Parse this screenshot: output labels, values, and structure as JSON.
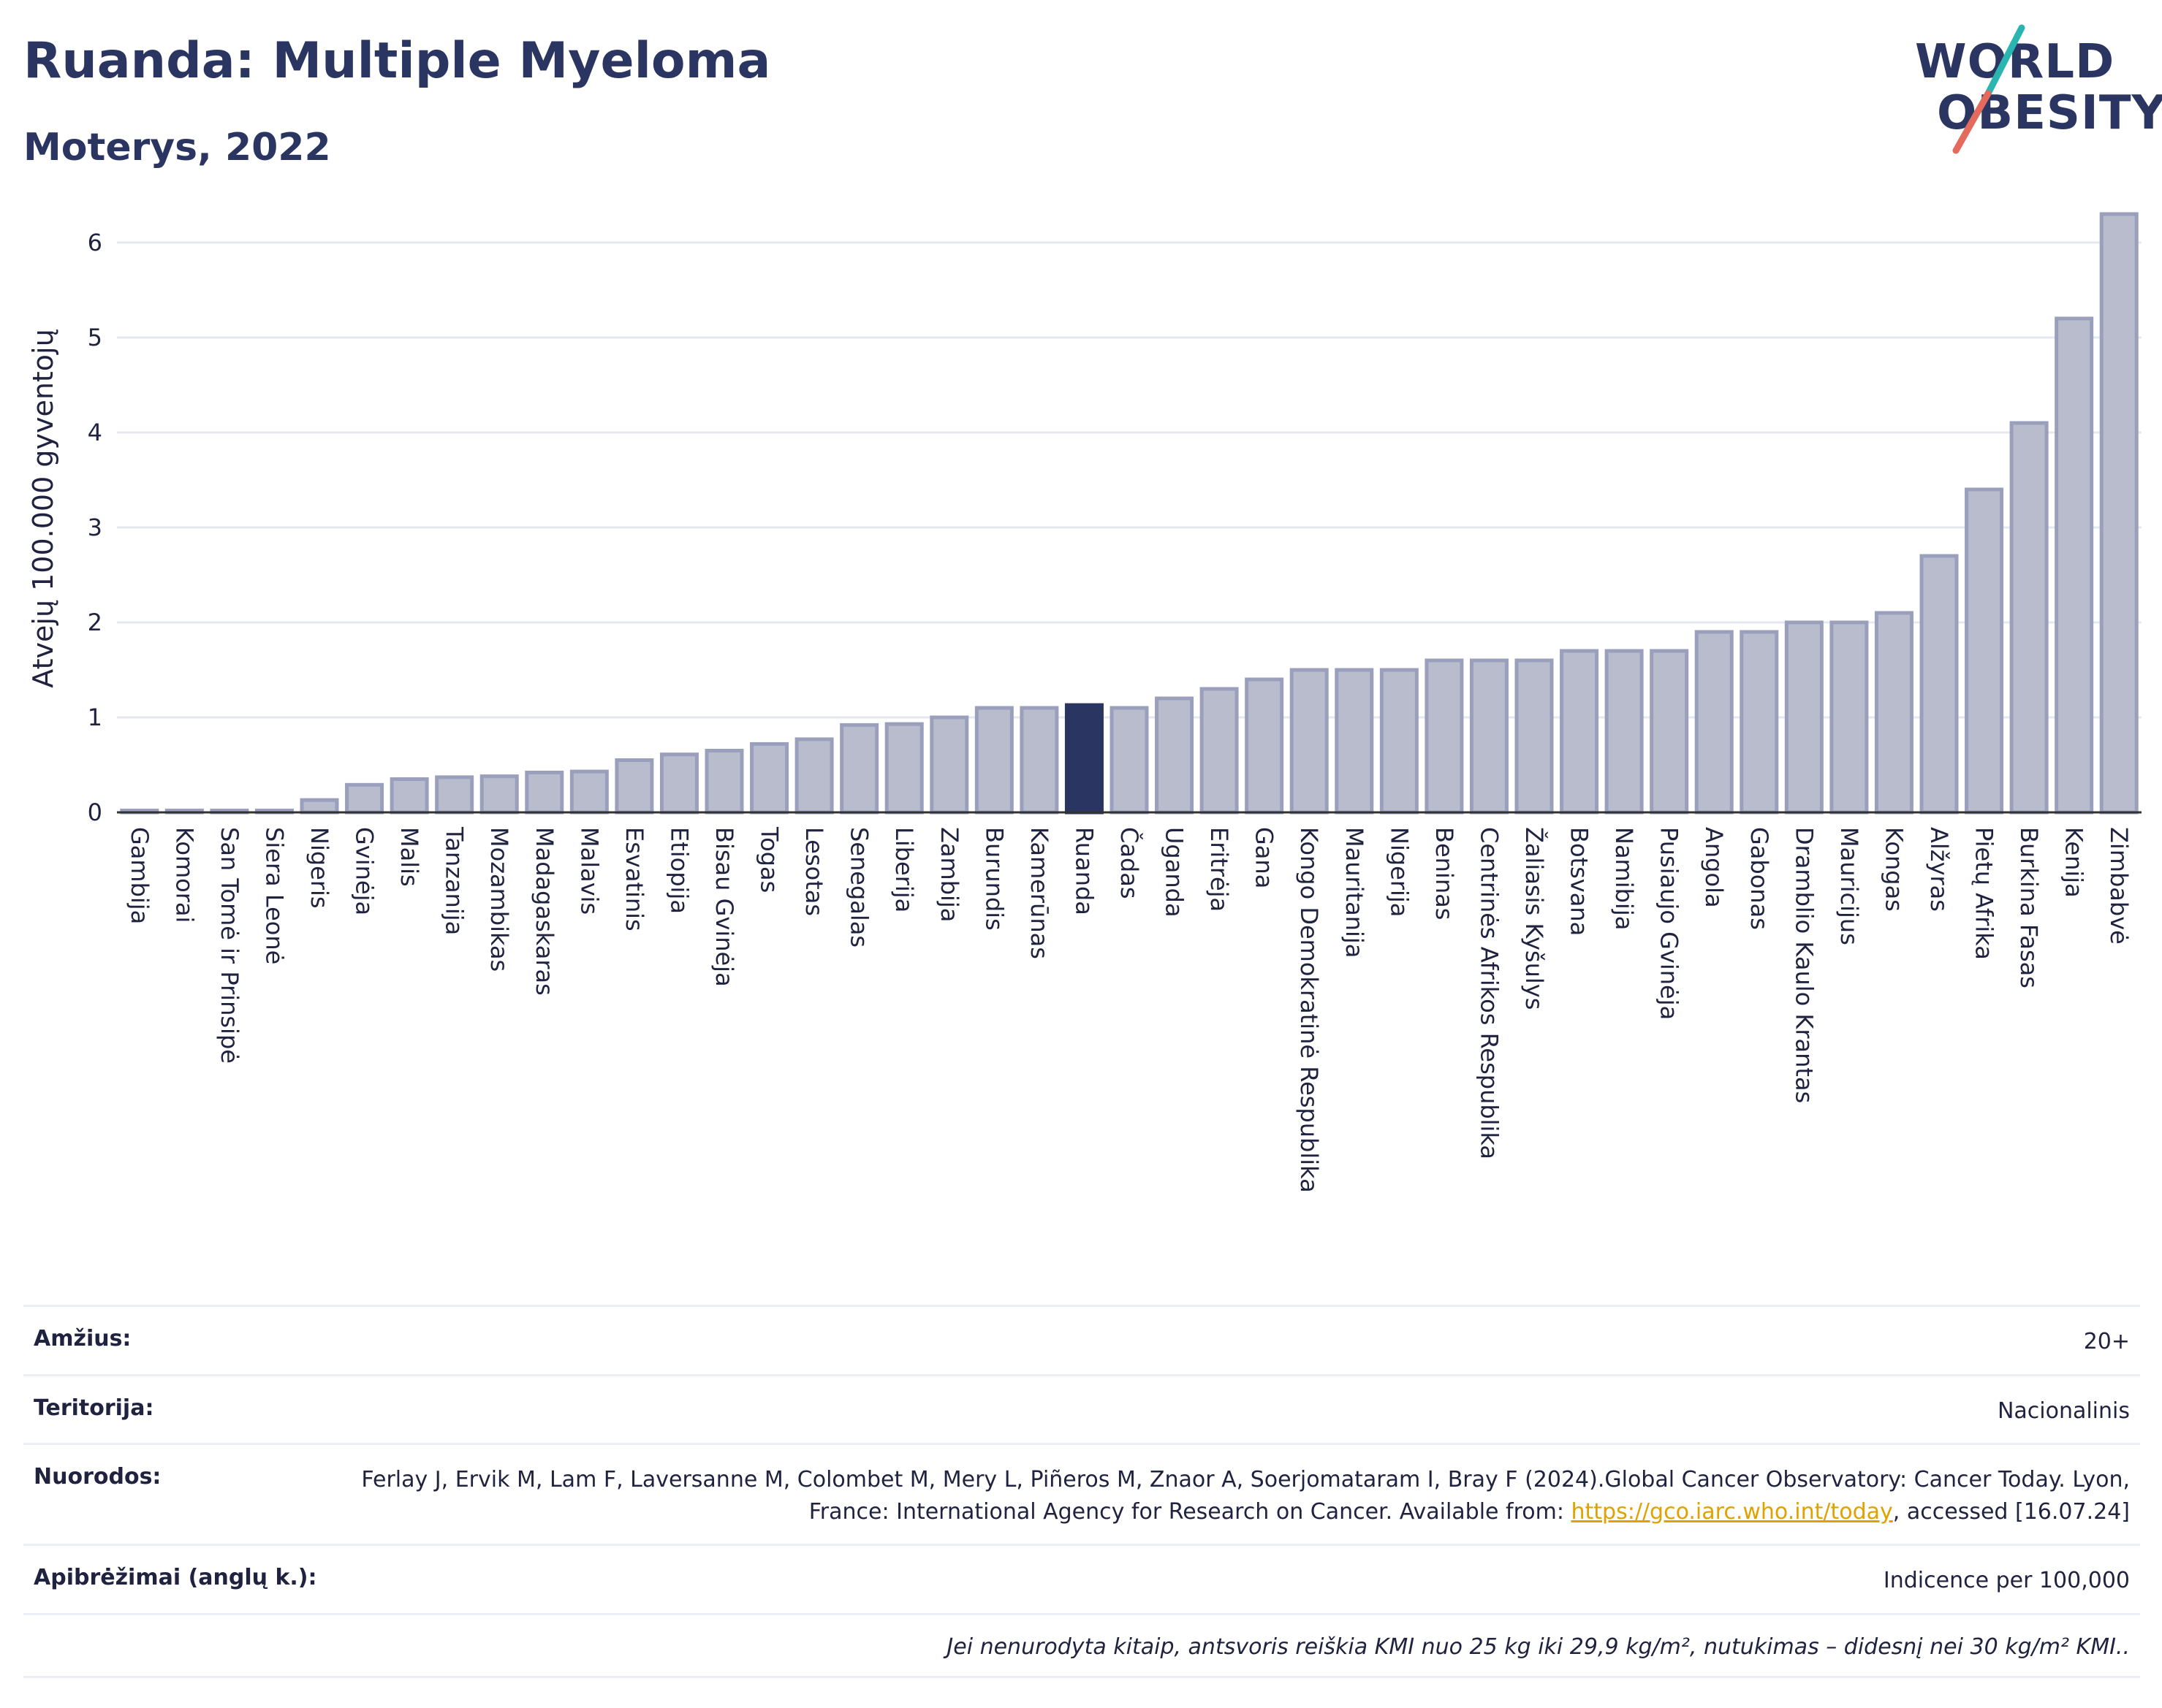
{
  "header": {
    "title": "Ruanda: Multiple Myeloma",
    "subtitle": "Moterys, 2022"
  },
  "logo": {
    "line1": "WORLD",
    "line2": "OBESITY",
    "colors": {
      "text": "#2b3561",
      "slash_top": "#2bb5b0",
      "slash_bottom": "#e36a5c"
    }
  },
  "colors": {
    "bar": "#b8bccd",
    "bar_border": "#9aa0bc",
    "highlight": "#2b3561",
    "grid": "#e6e8f0"
  },
  "chart_data": {
    "type": "bar",
    "ylabel": "Atvejų 100.000 gyventojų",
    "ylim": [
      0,
      6.4
    ],
    "yticks": [
      0,
      1,
      2,
      3,
      4,
      5,
      6
    ],
    "grid": true,
    "highlight": "Ruanda",
    "categories": [
      "Gambija",
      "Komorai",
      "San Tomė ir Prinsipė",
      "Siera Leonė",
      "Nigeris",
      "Gvinėja",
      "Malis",
      "Tanzanija",
      "Mozambikas",
      "Madagaskaras",
      "Malavis",
      "Esvatinis",
      "Etiopija",
      "Bisau Gvinėja",
      "Togas",
      "Lesotas",
      "Senegalas",
      "Liberija",
      "Zambija",
      "Burundis",
      "Kamerūnas",
      "Ruanda",
      "Čadas",
      "Uganda",
      "Eritrėja",
      "Gana",
      "Kongo Demokratinė Respublika",
      "Mauritanija",
      "Nigerija",
      "Beninas",
      "Centrinės Afrikos Respublika",
      "Žaliasis Kyšulys",
      "Botsvana",
      "Namibija",
      "Pusiaujo Gvinėja",
      "Angola",
      "Gabonas",
      "Dramblio Kaulo Krantas",
      "Mauricijus",
      "Kongas",
      "Alžyras",
      "Pietų Afrika",
      "Burkina Fasas",
      "Kenija",
      "Zimbabvė"
    ],
    "values": [
      0.02,
      0.02,
      0.02,
      0.02,
      0.13,
      0.29,
      0.35,
      0.37,
      0.38,
      0.42,
      0.43,
      0.55,
      0.61,
      0.65,
      0.72,
      0.77,
      0.92,
      0.93,
      1.0,
      1.1,
      1.1,
      1.13,
      1.1,
      1.2,
      1.3,
      1.4,
      1.5,
      1.5,
      1.5,
      1.6,
      1.6,
      1.6,
      1.7,
      1.7,
      1.7,
      1.9,
      1.9,
      2.0,
      2.0,
      2.1,
      2.7,
      3.4,
      4.1,
      5.2,
      6.3
    ]
  },
  "info": {
    "age_label": "Amžius:",
    "age_value": "20+",
    "territory_label": "Teritorija:",
    "territory_value": "Nacionalinis",
    "refs_label": "Nuorodos:",
    "refs_text1": "Ferlay J, Ervik M, Lam F, Laversanne M, Colombet M, Mery L, Piñeros M, Znaor A, Soerjomataram I, Bray F (2024).Global Cancer Observatory: Cancer Today. Lyon, France: International Agency for Research on Cancer. Available from: ",
    "refs_link": "https://gco.iarc.who.int/today",
    "refs_text2": ", accessed [16.07.24]",
    "defs_label": "Apibrėžimai (anglų k.):",
    "defs_value": "Indicence per 100,000",
    "note": "Jei nenurodyta kitaip, antsvoris reiškia KMI nuo 25 kg iki 29,9 kg/m², nutukimas – didesnį nei 30 kg/m² KMI.."
  }
}
